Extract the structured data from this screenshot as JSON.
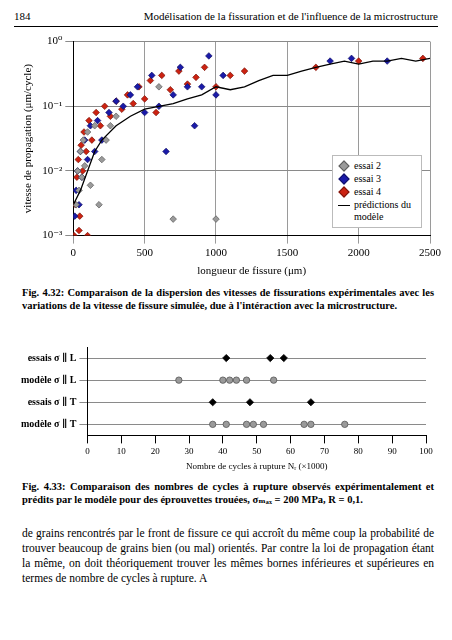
{
  "header": {
    "page_number": "184",
    "running_title": "Modélisation de la fissuration et de l'influence de la microstructure"
  },
  "chart_data": [
    {
      "type": "scatter",
      "xlabel": "longueur de fissure (μm)",
      "ylabel": "vitesse de propagation (μm/cycle)",
      "xlim": [
        0,
        2500
      ],
      "xticks": [
        0,
        500,
        1000,
        1500,
        2000,
        2500
      ],
      "ylim": [
        0.001,
        1
      ],
      "yticks": [
        {
          "value": 0.001,
          "label": "10⁻³"
        },
        {
          "value": 0.01,
          "label": "10⁻²"
        },
        {
          "value": 0.1,
          "label": "10⁻¹"
        },
        {
          "value": 1,
          "label": "10⁰"
        }
      ],
      "log": "y",
      "grid": true,
      "legend": "lower right",
      "series": [
        {
          "name": "essai 2",
          "color": "#9a9a9a",
          "marker": "diamond",
          "x": [
            20,
            30,
            40,
            50,
            60,
            70,
            80,
            100,
            120,
            150,
            180,
            200,
            230,
            260,
            300,
            600,
            700,
            1000
          ],
          "values": [
            0.003,
            0.01,
            0.005,
            0.02,
            0.008,
            0.03,
            0.012,
            0.04,
            0.006,
            0.05,
            0.003,
            0.015,
            0.03,
            0.05,
            0.07,
            0.2,
            0.0018,
            0.0018
          ]
        },
        {
          "name": "essai 3",
          "color": "#1a1aa8",
          "marker": "diamond",
          "x": [
            10,
            20,
            30,
            40,
            50,
            60,
            80,
            100,
            120,
            150,
            170,
            200,
            250,
            300,
            350,
            400,
            450,
            500,
            550,
            600,
            650,
            700,
            750,
            800,
            850,
            900,
            950,
            1000,
            1050,
            1800,
            1950,
            2200
          ],
          "values": [
            0.002,
            0.005,
            0.01,
            0.003,
            0.02,
            0.008,
            0.03,
            0.015,
            0.05,
            0.02,
            0.06,
            0.03,
            0.08,
            0.12,
            0.1,
            0.15,
            0.2,
            0.08,
            0.3,
            0.1,
            0.02,
            0.15,
            0.4,
            0.2,
            0.05,
            0.2,
            0.6,
            0.15,
            0.3,
            0.5,
            0.55,
            0.5
          ]
        },
        {
          "name": "essai 4",
          "color": "#cc2211",
          "marker": "diamond",
          "x": [
            5,
            15,
            25,
            35,
            40,
            45,
            55,
            65,
            75,
            90,
            100,
            110,
            130,
            160,
            190,
            220,
            260,
            300,
            340,
            380,
            420,
            460,
            500,
            540,
            580,
            620,
            680,
            740,
            800,
            860,
            920,
            1000,
            1100,
            1200,
            1700,
            2000,
            2450
          ],
          "values": [
            0.001,
            0.003,
            0.008,
            0.015,
            0.0012,
            0.002,
            0.025,
            0.01,
            0.04,
            0.02,
            0.001,
            0.06,
            0.03,
            0.08,
            0.05,
            0.1,
            0.07,
            0.12,
            0.09,
            0.15,
            0.11,
            0.2,
            0.13,
            0.25,
            0.08,
            0.3,
            0.18,
            0.35,
            0.22,
            0.28,
            0.4,
            0.2,
            0.3,
            0.35,
            0.4,
            0.5,
            0.55
          ]
        },
        {
          "name": "prédictions du modèle",
          "color": "#000000",
          "type": "line",
          "line_style": "solid",
          "x": [
            0,
            50,
            100,
            150,
            200,
            300,
            400,
            500,
            600,
            700,
            800,
            900,
            1000,
            1100,
            1200,
            1300,
            1400,
            1500,
            1600,
            1700,
            1800,
            1900,
            2000,
            2100,
            2200,
            2300,
            2400,
            2500
          ],
          "values": [
            0.003,
            0.005,
            0.01,
            0.02,
            0.03,
            0.05,
            0.07,
            0.09,
            0.1,
            0.11,
            0.13,
            0.15,
            0.2,
            0.18,
            0.2,
            0.25,
            0.3,
            0.3,
            0.35,
            0.4,
            0.45,
            0.5,
            0.45,
            0.5,
            0.5,
            0.55,
            0.5,
            0.55
          ]
        }
      ]
    },
    {
      "type": "scatter",
      "xlabel": "Nombre de cycles à rupture Nᵣ (×1000)",
      "xlim": [
        0,
        100
      ],
      "xticks": [
        0,
        10,
        20,
        30,
        40,
        50,
        60,
        70,
        80,
        90,
        100
      ],
      "grid": true,
      "series": [
        {
          "name": "essais σ ∥ L",
          "color": "#000000",
          "marker": "diamond",
          "values": [
            41,
            54,
            58
          ]
        },
        {
          "name": "modèle σ ∥ L",
          "color": "#9a9a9a",
          "marker": "circle",
          "values": [
            27,
            40,
            42,
            44,
            47,
            55
          ]
        },
        {
          "name": "essais σ ∥ T",
          "color": "#000000",
          "marker": "diamond",
          "values": [
            37,
            48,
            66
          ]
        },
        {
          "name": "modèle σ ∥ T",
          "color": "#9a9a9a",
          "marker": "circle",
          "values": [
            37,
            41,
            47,
            49,
            52,
            64,
            66,
            76
          ]
        }
      ]
    }
  ],
  "captions": [
    "Fig. 4.32: Comparaison de la dispersion des vitesses de fissurations expérimentales avec les variations de la vitesse de fissure simulée, due à l'intéraction avec la microstructure.",
    "Fig. 4.33: Comparaison des nombres de cycles à rupture observés expérimentalement et prédits par le modèle pour des éprouvettes trouées, σₘₐₓ = 200 MPa, R = 0,1."
  ],
  "body_text": "de grains rencontrés par le front de fissure ce qui accroît du même coup la probabilité de trouver beaucoup de grains bien (ou mal) orientés. Par contre la loi de propagation étant la même, on doit théoriquement trouver les mêmes bornes inférieures et supérieures en termes de nombre de cycles à rupture. A"
}
